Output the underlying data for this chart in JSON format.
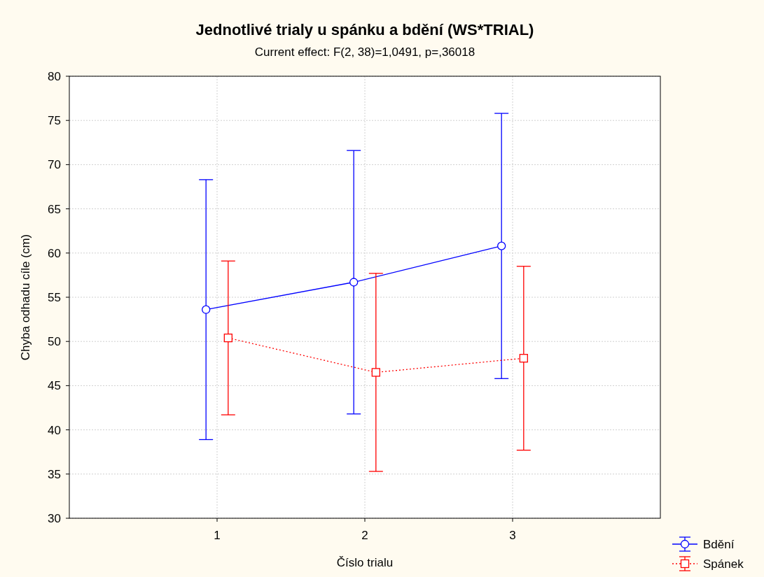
{
  "chart_data": {
    "type": "line",
    "title": "Jednotlivé trialy u spánku a bdění (WS*TRIAL)",
    "subtitle": "Current effect: F(2, 38)=1,0491, p=,36018",
    "xlabel": "Číslo trialu",
    "ylabel": "Chyba odhadu cíle (cm)",
    "xlim": [
      0,
      4
    ],
    "xticks": [
      1,
      2,
      3
    ],
    "ylim": [
      30,
      80
    ],
    "yticks": [
      30,
      35,
      40,
      45,
      50,
      55,
      60,
      65,
      70,
      75,
      80
    ],
    "grid": true,
    "legend": "bottom right",
    "series": [
      {
        "name": "Bdění",
        "color": "#0000ff",
        "x": [
          0.925,
          1.925,
          2.925
        ],
        "values": [
          53.6,
          56.7,
          60.8
        ],
        "errors": [
          14.7,
          14.9,
          15.0
        ],
        "marker": "circle",
        "line_style": "solid"
      },
      {
        "name": "Spánek",
        "color": "#ff0000",
        "x": [
          1.075,
          2.075,
          3.075
        ],
        "values": [
          50.4,
          46.5,
          48.1
        ],
        "errors": [
          8.7,
          11.2,
          10.4
        ],
        "marker": "square",
        "line_style": "dotted"
      }
    ]
  }
}
